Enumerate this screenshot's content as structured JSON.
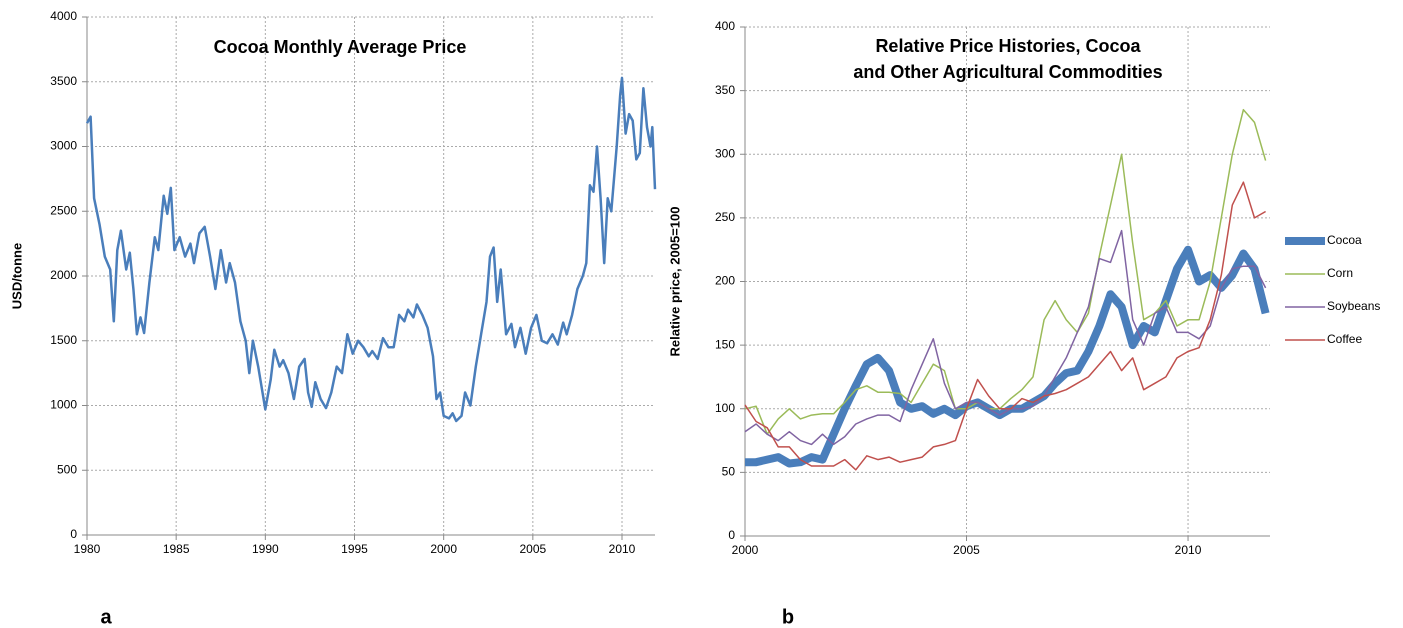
{
  "chart_data": [
    {
      "type": "line",
      "title": "Cocoa Monthly Average Price",
      "y_label": "USD/tonne",
      "panel_label": "a",
      "color": "#4a7ebb",
      "grid": true,
      "xlim": [
        1980,
        2011.85
      ],
      "xticks": [
        1980,
        1985,
        1990,
        1995,
        2000,
        2005,
        2010
      ],
      "ylim": [
        0,
        4000
      ],
      "yticks": [
        0,
        500,
        1000,
        1500,
        2000,
        2500,
        3000,
        3500,
        4000
      ],
      "x": [
        1980.0,
        1980.2,
        1980.4,
        1980.7,
        1981.0,
        1981.3,
        1981.5,
        1981.7,
        1981.9,
        1982.2,
        1982.4,
        1982.6,
        1982.8,
        1983.0,
        1983.2,
        1983.5,
        1983.8,
        1984.0,
        1984.3,
        1984.5,
        1984.7,
        1984.9,
        1985.2,
        1985.5,
        1985.8,
        1986.0,
        1986.3,
        1986.6,
        1986.9,
        1987.2,
        1987.5,
        1987.8,
        1988.0,
        1988.3,
        1988.6,
        1988.9,
        1989.1,
        1989.3,
        1989.6,
        1989.9,
        1990.0,
        1990.3,
        1990.5,
        1990.8,
        1991.0,
        1991.3,
        1991.6,
        1991.9,
        1992.2,
        1992.4,
        1992.6,
        1992.8,
        1993.1,
        1993.4,
        1993.7,
        1994.0,
        1994.3,
        1994.6,
        1994.9,
        1995.2,
        1995.5,
        1995.8,
        1996.0,
        1996.3,
        1996.6,
        1996.9,
        1997.2,
        1997.5,
        1997.8,
        1998.0,
        1998.3,
        1998.5,
        1998.8,
        1999.1,
        1999.4,
        1999.6,
        1999.8,
        2000.0,
        2000.3,
        2000.5,
        2000.7,
        2001.0,
        2001.2,
        2001.5,
        2001.8,
        2002.1,
        2002.4,
        2002.6,
        2002.8,
        2003.0,
        2003.2,
        2003.5,
        2003.8,
        2004.0,
        2004.3,
        2004.6,
        2004.9,
        2005.2,
        2005.5,
        2005.8,
        2006.1,
        2006.4,
        2006.7,
        2006.9,
        2007.2,
        2007.5,
        2007.8,
        2008.0,
        2008.2,
        2008.4,
        2008.6,
        2008.8,
        2009.0,
        2009.2,
        2009.4,
        2009.7,
        2009.9,
        2010.0,
        2010.2,
        2010.4,
        2010.6,
        2010.8,
        2011.0,
        2011.2,
        2011.4,
        2011.6,
        2011.7,
        2011.85
      ],
      "values": [
        3180,
        3230,
        2600,
        2400,
        2150,
        2050,
        1650,
        2200,
        2350,
        2050,
        2180,
        1900,
        1550,
        1680,
        1560,
        1950,
        2300,
        2200,
        2620,
        2480,
        2680,
        2200,
        2300,
        2150,
        2250,
        2100,
        2330,
        2380,
        2150,
        1900,
        2200,
        1950,
        2100,
        1950,
        1650,
        1500,
        1250,
        1500,
        1300,
        1050,
        970,
        1200,
        1430,
        1300,
        1350,
        1250,
        1050,
        1300,
        1360,
        1100,
        990,
        1180,
        1050,
        980,
        1100,
        1300,
        1250,
        1550,
        1400,
        1500,
        1450,
        1380,
        1420,
        1360,
        1520,
        1450,
        1450,
        1700,
        1650,
        1740,
        1680,
        1780,
        1700,
        1600,
        1380,
        1050,
        1100,
        920,
        900,
        940,
        880,
        920,
        1100,
        1000,
        1300,
        1550,
        1800,
        2150,
        2220,
        1800,
        2050,
        1550,
        1630,
        1450,
        1600,
        1400,
        1600,
        1700,
        1500,
        1480,
        1550,
        1470,
        1640,
        1550,
        1700,
        1900,
        2000,
        2100,
        2700,
        2650,
        3000,
        2600,
        2100,
        2600,
        2500,
        3000,
        3400,
        3530,
        3100,
        3250,
        3200,
        2900,
        2950,
        3450,
        3150,
        3000,
        3150,
        2670
      ]
    },
    {
      "type": "line",
      "title": [
        "Relative Price Histories, Cocoa",
        "and Other Agricultural Commodities"
      ],
      "y_label": "Relative price, 2005=100",
      "panel_label": "b",
      "grid": true,
      "xlim": [
        2000,
        2011.85
      ],
      "xticks": [
        2000,
        2005,
        2010
      ],
      "ylim": [
        0,
        400
      ],
      "yticks": [
        0,
        50,
        100,
        150,
        200,
        250,
        300,
        350,
        400
      ],
      "x": [
        2000,
        2000.25,
        2000.5,
        2000.75,
        2001,
        2001.25,
        2001.5,
        2001.75,
        2002,
        2002.25,
        2002.5,
        2002.75,
        2003,
        2003.25,
        2003.5,
        2003.75,
        2004,
        2004.25,
        2004.5,
        2004.75,
        2005,
        2005.25,
        2005.5,
        2005.75,
        2006,
        2006.25,
        2006.5,
        2006.75,
        2007,
        2007.25,
        2007.5,
        2007.75,
        2008,
        2008.25,
        2008.5,
        2008.75,
        2009,
        2009.25,
        2009.5,
        2009.75,
        2010,
        2010.25,
        2010.5,
        2010.75,
        2011,
        2011.25,
        2011.5,
        2011.75
      ],
      "series": [
        {
          "name": "Cocoa",
          "color": "#4a7ebb",
          "width": 8,
          "values": [
            58,
            58,
            60,
            62,
            57,
            58,
            62,
            60,
            80,
            100,
            118,
            135,
            140,
            130,
            105,
            100,
            102,
            96,
            100,
            95,
            102,
            105,
            100,
            95,
            100,
            100,
            105,
            110,
            120,
            128,
            130,
            145,
            165,
            190,
            180,
            150,
            165,
            160,
            185,
            210,
            225,
            200,
            205,
            195,
            205,
            222,
            210,
            175
          ]
        },
        {
          "name": "Corn",
          "color": "#9bbb59",
          "width": 1.5,
          "values": [
            100,
            102,
            80,
            92,
            100,
            92,
            95,
            96,
            96,
            105,
            115,
            118,
            113,
            113,
            112,
            105,
            120,
            135,
            130,
            100,
            100,
            105,
            100,
            100,
            108,
            115,
            125,
            170,
            185,
            170,
            160,
            175,
            220,
            260,
            300,
            230,
            170,
            175,
            185,
            165,
            170,
            170,
            200,
            250,
            300,
            335,
            325,
            295
          ]
        },
        {
          "name": "Soybeans",
          "color": "#8064a2",
          "width": 1.5,
          "values": [
            82,
            88,
            80,
            75,
            82,
            75,
            72,
            80,
            72,
            78,
            88,
            92,
            95,
            95,
            90,
            115,
            135,
            155,
            120,
            100,
            105,
            105,
            100,
            95,
            100,
            100,
            102,
            110,
            125,
            140,
            160,
            180,
            218,
            215,
            240,
            170,
            150,
            175,
            180,
            160,
            160,
            155,
            165,
            195,
            210,
            212,
            212,
            195
          ]
        },
        {
          "name": "Coffee",
          "color": "#c0504d",
          "width": 1.5,
          "values": [
            103,
            90,
            85,
            70,
            70,
            60,
            55,
            55,
            55,
            60,
            52,
            63,
            60,
            62,
            58,
            60,
            62,
            70,
            72,
            75,
            100,
            123,
            110,
            100,
            100,
            108,
            105,
            110,
            112,
            115,
            120,
            125,
            135,
            145,
            130,
            140,
            115,
            120,
            125,
            140,
            145,
            148,
            170,
            205,
            260,
            278,
            250,
            255
          ]
        }
      ]
    }
  ]
}
